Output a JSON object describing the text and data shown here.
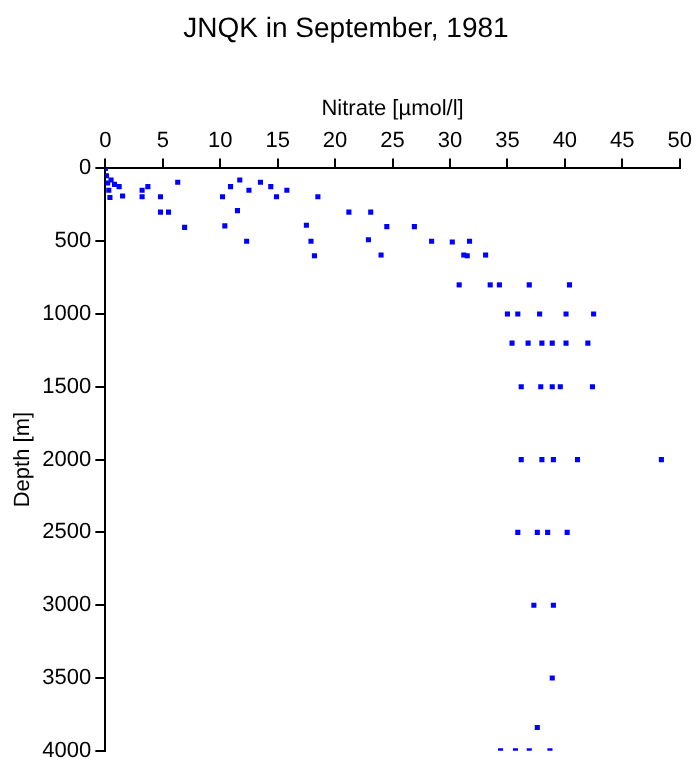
{
  "chart_data": {
    "type": "scatter",
    "title": "JNQK in September, 1981",
    "xlabel": "Nitrate [µmol/l]",
    "ylabel": "Depth [m]",
    "xlim": [
      0,
      50
    ],
    "xticks": [
      0,
      5,
      10,
      15,
      20,
      25,
      30,
      35,
      40,
      45,
      50
    ],
    "ylim": [
      4000,
      0
    ],
    "yticks": [
      0,
      500,
      1000,
      1500,
      2000,
      2500,
      3000,
      3500,
      4000
    ],
    "grid": false,
    "legend": false,
    "marker": "square",
    "series": [
      {
        "color": "#0000ff",
        "x": [
          0,
          0.1,
          0.2,
          0.3,
          0.5,
          0.8,
          1.2,
          1.5,
          0.4,
          3.2,
          3.2,
          3.7,
          4.8,
          4.8,
          5.5,
          6.3,
          6.9,
          10.2,
          10.4,
          10.9,
          11.7,
          11.5,
          12.5,
          12.3,
          13.5,
          14.4,
          14.9,
          15.8,
          17.5,
          17.9,
          18.2,
          18.5,
          21.2,
          23.1,
          22.9,
          24.5,
          24.0,
          26.9,
          28.4,
          30.2,
          31.7,
          31.2,
          31.5,
          33.1,
          30.8,
          33.5,
          34.3,
          36.9,
          40.4,
          35.0,
          35.9,
          37.8,
          40.1,
          42.5,
          35.4,
          36.8,
          38.0,
          38.9,
          40.1,
          42.0,
          36.2,
          37.9,
          38.9,
          39.6,
          42.4,
          36.2,
          38.0,
          39.0,
          41.1,
          48.4,
          35.9,
          37.6,
          38.5,
          40.2,
          37.3,
          39.0,
          38.9,
          37.6,
          34.4,
          35.7,
          36.9,
          38.7
        ],
        "values": [
          0,
          50,
          100,
          150,
          80,
          110,
          125,
          190,
          200,
          150,
          195,
          125,
          195,
          300,
          300,
          95,
          405,
          195,
          395,
          125,
          80,
          290,
          150,
          500,
          95,
          125,
          195,
          150,
          390,
          500,
          600,
          195,
          300,
          300,
          490,
          400,
          595,
          400,
          500,
          505,
          500,
          595,
          600,
          595,
          800,
          800,
          800,
          800,
          800,
          1000,
          1000,
          1000,
          1000,
          1000,
          1200,
          1200,
          1200,
          1200,
          1200,
          1200,
          1500,
          1500,
          1500,
          1500,
          1500,
          2000,
          2000,
          2000,
          2000,
          2000,
          2500,
          2500,
          2500,
          2500,
          3000,
          3000,
          3500,
          3840,
          4000,
          4000,
          4000,
          4000
        ]
      }
    ]
  }
}
